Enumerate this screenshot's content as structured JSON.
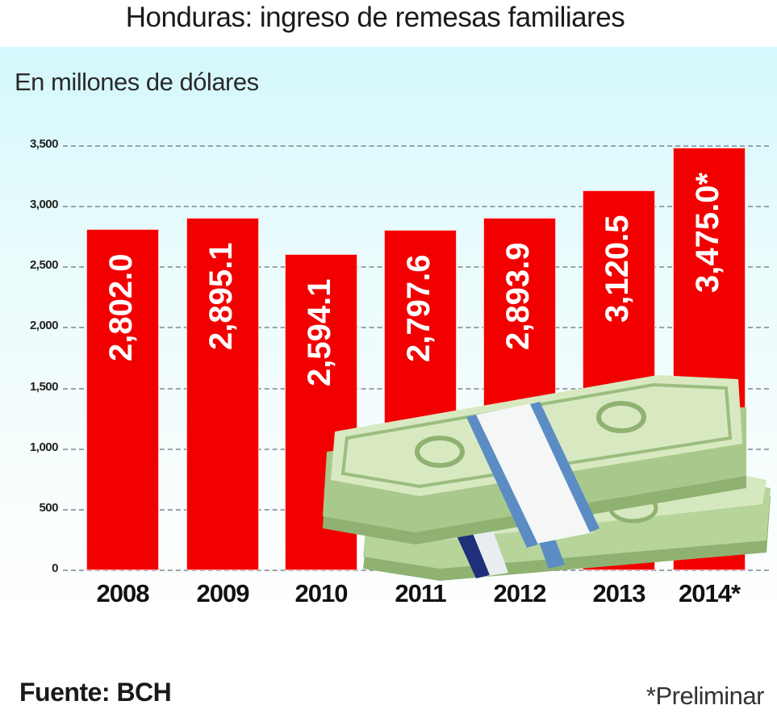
{
  "header": {
    "title": "Honduras: ingreso de remesas familiares",
    "subtitle": "En millones de dólares"
  },
  "footer": {
    "source": "Fuente: BCH",
    "note": "*Preliminar"
  },
  "colors": {
    "bar": "#f20000",
    "background_top": "#d3f8fb",
    "bill_green": "#a8c98a",
    "band_blue": "#5b8cc4"
  },
  "decoration": {
    "icon": "money-stack-icon"
  },
  "chart_data": {
    "type": "bar",
    "title": "Honduras: ingreso de remesas familiares",
    "subtitle": "En millones de dólares",
    "xlabel": "",
    "ylabel": "En millones de dólares",
    "categories": [
      "2008",
      "2009",
      "2010",
      "2011",
      "2012",
      "2013",
      "2014*"
    ],
    "values": [
      2802.0,
      2895.1,
      2594.1,
      2797.6,
      2893.9,
      3120.5,
      3475.0
    ],
    "value_labels": [
      "2,802.0",
      "2,895.1",
      "2,594.1",
      "2,797.6",
      "2,893.9",
      "3,120.5",
      "3,475.0*"
    ],
    "ylim": [
      0,
      3500
    ],
    "yticks": [
      "0",
      "500",
      "1,000",
      "1,500",
      "2,000",
      "2,500",
      "3,000",
      "3,500"
    ],
    "grid": true,
    "legend": null,
    "annotations": [
      "Fuente: BCH",
      "*Preliminar"
    ]
  }
}
